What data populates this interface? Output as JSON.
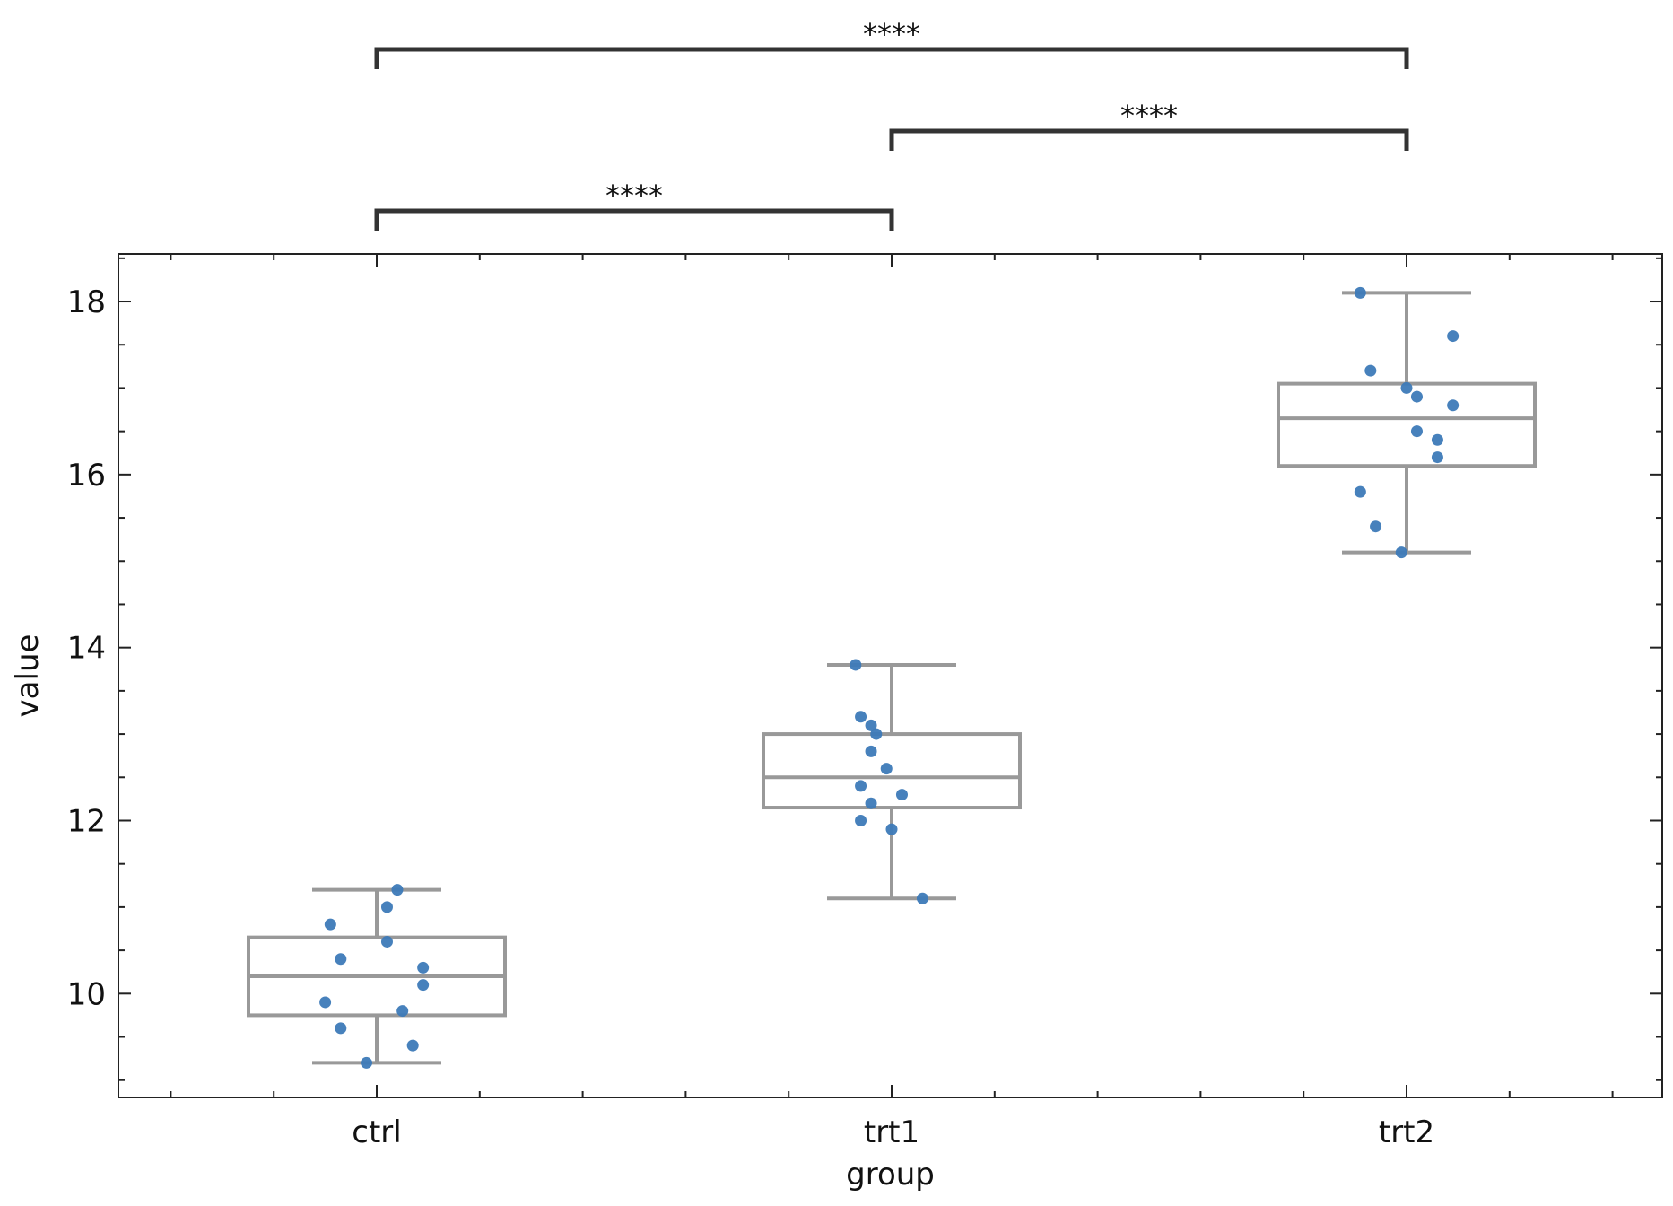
{
  "chart_data": {
    "type": "box",
    "xlabel": "group",
    "ylabel": "value",
    "categories": [
      "ctrl",
      "trt1",
      "trt2"
    ],
    "ylim": [
      8.8,
      18.55
    ],
    "yticks_major": [
      10,
      12,
      14,
      16,
      18
    ],
    "yticks_minor_step": 0.5,
    "grid": false,
    "legend": "none",
    "colors": {
      "box": "#999999",
      "points": "#3d7ab8",
      "brackets": "#333333"
    },
    "boxes": [
      {
        "category": "ctrl",
        "whisker_low": 9.2,
        "q1": 9.75,
        "median": 10.2,
        "q3": 10.65,
        "whisker_high": 11.2
      },
      {
        "category": "trt1",
        "whisker_low": 11.1,
        "q1": 12.15,
        "median": 12.5,
        "q3": 13.0,
        "whisker_high": 13.8
      },
      {
        "category": "trt2",
        "whisker_low": 15.1,
        "q1": 16.1,
        "median": 16.65,
        "q3": 17.05,
        "whisker_high": 18.1
      }
    ],
    "points": [
      {
        "category": "ctrl",
        "jitter": 0.04,
        "y": 11.2
      },
      {
        "category": "ctrl",
        "jitter": 0.02,
        "y": 11.0
      },
      {
        "category": "ctrl",
        "jitter": -0.09,
        "y": 10.8
      },
      {
        "category": "ctrl",
        "jitter": 0.02,
        "y": 10.6
      },
      {
        "category": "ctrl",
        "jitter": -0.07,
        "y": 10.4
      },
      {
        "category": "ctrl",
        "jitter": 0.09,
        "y": 10.3
      },
      {
        "category": "ctrl",
        "jitter": 0.09,
        "y": 10.1
      },
      {
        "category": "ctrl",
        "jitter": -0.1,
        "y": 9.9
      },
      {
        "category": "ctrl",
        "jitter": 0.05,
        "y": 9.8
      },
      {
        "category": "ctrl",
        "jitter": -0.07,
        "y": 9.6
      },
      {
        "category": "ctrl",
        "jitter": 0.07,
        "y": 9.4
      },
      {
        "category": "ctrl",
        "jitter": -0.02,
        "y": 9.2
      },
      {
        "category": "trt1",
        "jitter": -0.07,
        "y": 13.8
      },
      {
        "category": "trt1",
        "jitter": -0.06,
        "y": 13.2
      },
      {
        "category": "trt1",
        "jitter": -0.04,
        "y": 13.1
      },
      {
        "category": "trt1",
        "jitter": -0.03,
        "y": 13.0
      },
      {
        "category": "trt1",
        "jitter": -0.04,
        "y": 12.8
      },
      {
        "category": "trt1",
        "jitter": -0.01,
        "y": 12.6
      },
      {
        "category": "trt1",
        "jitter": -0.06,
        "y": 12.4
      },
      {
        "category": "trt1",
        "jitter": 0.02,
        "y": 12.3
      },
      {
        "category": "trt1",
        "jitter": -0.04,
        "y": 12.2
      },
      {
        "category": "trt1",
        "jitter": -0.06,
        "y": 12.0
      },
      {
        "category": "trt1",
        "jitter": 0.0,
        "y": 11.9
      },
      {
        "category": "trt1",
        "jitter": 0.06,
        "y": 11.1
      },
      {
        "category": "trt2",
        "jitter": -0.09,
        "y": 18.1
      },
      {
        "category": "trt2",
        "jitter": 0.09,
        "y": 17.6
      },
      {
        "category": "trt2",
        "jitter": -0.07,
        "y": 17.2
      },
      {
        "category": "trt2",
        "jitter": 0.0,
        "y": 17.0
      },
      {
        "category": "trt2",
        "jitter": 0.02,
        "y": 16.9
      },
      {
        "category": "trt2",
        "jitter": 0.09,
        "y": 16.8
      },
      {
        "category": "trt2",
        "jitter": 0.02,
        "y": 16.5
      },
      {
        "category": "trt2",
        "jitter": 0.06,
        "y": 16.4
      },
      {
        "category": "trt2",
        "jitter": 0.06,
        "y": 16.2
      },
      {
        "category": "trt2",
        "jitter": -0.09,
        "y": 15.8
      },
      {
        "category": "trt2",
        "jitter": -0.06,
        "y": 15.4
      },
      {
        "category": "trt2",
        "jitter": -0.01,
        "y": 15.1
      }
    ],
    "significance": [
      {
        "from": "ctrl",
        "to": "trt1",
        "label": "****",
        "level": 1
      },
      {
        "from": "trt1",
        "to": "trt2",
        "label": "****",
        "level": 2
      },
      {
        "from": "ctrl",
        "to": "trt2",
        "label": "****",
        "level": 3
      }
    ]
  }
}
